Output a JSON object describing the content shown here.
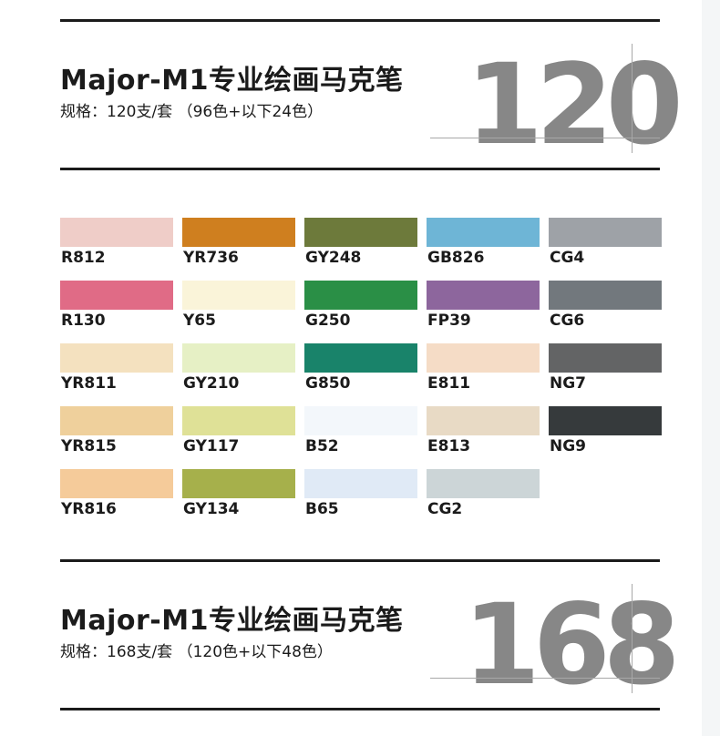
{
  "sets": [
    {
      "title": "Major-M1专业绘画马克笔",
      "spec": "规格：120支/套  （96色+以下24色）",
      "number": "120"
    },
    {
      "title": "Major-M1专业绘画马克笔",
      "spec": "规格：168支/套  （120色+以下48色）",
      "number": "168"
    }
  ],
  "swatches": [
    {
      "code": "R812",
      "color": "#efcdc8"
    },
    {
      "code": "YR736",
      "color": "#cf7f1f"
    },
    {
      "code": "GY248",
      "color": "#6d7a3b"
    },
    {
      "code": "GB826",
      "color": "#6eb5d6"
    },
    {
      "code": "CG4",
      "color": "#9ea2a7"
    },
    {
      "code": "R130",
      "color": "#e06b86"
    },
    {
      "code": "Y65",
      "color": "#faf4d9"
    },
    {
      "code": "G250",
      "color": "#2a8f46"
    },
    {
      "code": "FP39",
      "color": "#8d669d"
    },
    {
      "code": "CG6",
      "color": "#72787d"
    },
    {
      "code": "YR811",
      "color": "#f4e1bf"
    },
    {
      "code": "GY210",
      "color": "#e6f0c5"
    },
    {
      "code": "G850",
      "color": "#19836a"
    },
    {
      "code": "E811",
      "color": "#f5dcc6"
    },
    {
      "code": "NG7",
      "color": "#636465"
    },
    {
      "code": "YR815",
      "color": "#efd09c"
    },
    {
      "code": "GY117",
      "color": "#dfe197"
    },
    {
      "code": "B52",
      "color": "#f3f7fb"
    },
    {
      "code": "E813",
      "color": "#e8dac5"
    },
    {
      "code": "NG9",
      "color": "#363a3c"
    },
    {
      "code": "YR816",
      "color": "#f5cb9a"
    },
    {
      "code": "GY134",
      "color": "#a6b04b"
    },
    {
      "code": "B65",
      "color": "#e0eaf6"
    },
    {
      "code": "CG2",
      "color": "#ccd5d7"
    }
  ]
}
